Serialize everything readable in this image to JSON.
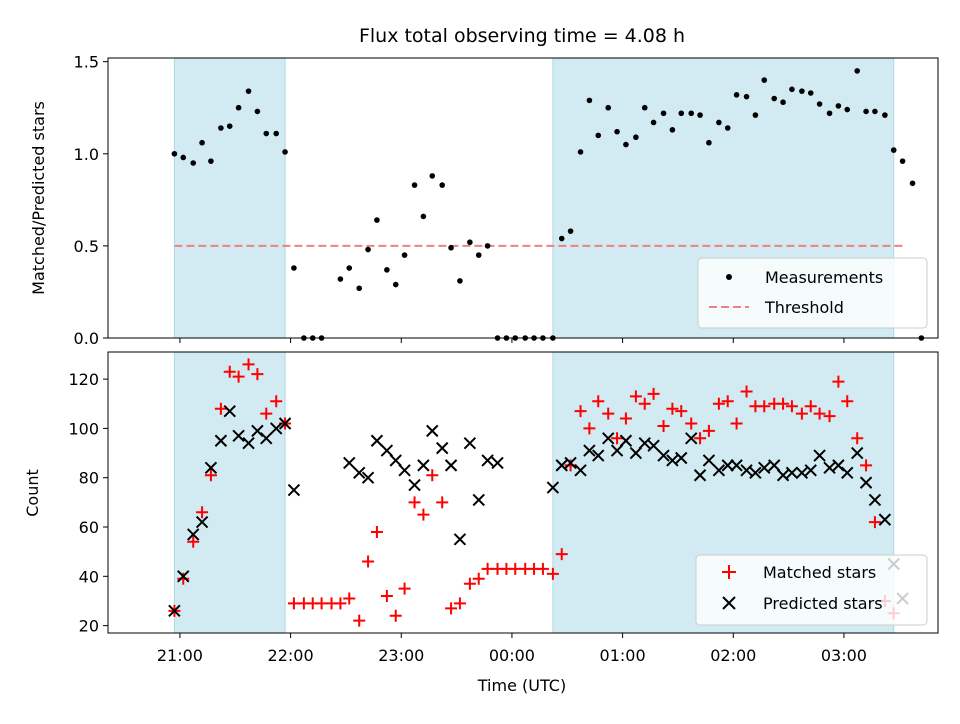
{
  "chart_data": {
    "title": "Flux total observing time = 4.08 h",
    "xlabel": "Time (UTC)",
    "x_unit": "hours since 00:00 UTC (negative = previous evening)",
    "xlim": [
      -3.65,
      3.85
    ],
    "x_ticks": [
      {
        "x": -3,
        "label": "21:00"
      },
      {
        "x": -2,
        "label": "22:00"
      },
      {
        "x": -1,
        "label": "23:00"
      },
      {
        "x": 0,
        "label": "00:00"
      },
      {
        "x": 1,
        "label": "01:00"
      },
      {
        "x": 2,
        "label": "02:00"
      },
      {
        "x": 3,
        "label": "03:00"
      }
    ],
    "shaded_intervals": [
      [
        -3.05,
        -2.05
      ],
      [
        0.37,
        3.45
      ]
    ],
    "shade_color": "#add8e6",
    "panels": [
      {
        "type": "scatter",
        "ylabel": "Matched/Predicted stars",
        "ylim": [
          0,
          1.52
        ],
        "y_ticks": [
          0,
          0.5,
          1.0,
          1.5
        ],
        "y_tick_labels": [
          "0.0",
          "0.5",
          "1.0",
          "1.5"
        ],
        "legend_position": "lower right",
        "threshold": {
          "name": "Threshold",
          "y": 0.5,
          "x_range": [
            -3.05,
            3.55
          ],
          "color": "#f08080"
        },
        "series": [
          {
            "name": "Measurements",
            "color": "#000000",
            "marker": "dot",
            "points": [
              [
                -3.05,
                1.0
              ],
              [
                -2.97,
                0.98
              ],
              [
                -2.88,
                0.95
              ],
              [
                -2.8,
                1.06
              ],
              [
                -2.72,
                0.96
              ],
              [
                -2.63,
                1.14
              ],
              [
                -2.55,
                1.15
              ],
              [
                -2.47,
                1.25
              ],
              [
                -2.38,
                1.34
              ],
              [
                -2.3,
                1.23
              ],
              [
                -2.22,
                1.11
              ],
              [
                -2.13,
                1.11
              ],
              [
                -2.05,
                1.01
              ],
              [
                -1.97,
                0.38
              ],
              [
                -1.88,
                0.0
              ],
              [
                -1.8,
                0.0
              ],
              [
                -1.72,
                0.0
              ],
              [
                -1.55,
                0.32
              ],
              [
                -1.47,
                0.38
              ],
              [
                -1.38,
                0.27
              ],
              [
                -1.3,
                0.48
              ],
              [
                -1.22,
                0.64
              ],
              [
                -1.13,
                0.37
              ],
              [
                -1.05,
                0.29
              ],
              [
                -0.97,
                0.45
              ],
              [
                -0.88,
                0.83
              ],
              [
                -0.8,
                0.66
              ],
              [
                -0.72,
                0.88
              ],
              [
                -0.63,
                0.83
              ],
              [
                -0.55,
                0.49
              ],
              [
                -0.47,
                0.31
              ],
              [
                -0.38,
                0.52
              ],
              [
                -0.3,
                0.45
              ],
              [
                -0.22,
                0.5
              ],
              [
                -0.13,
                0.0
              ],
              [
                -0.05,
                0.0
              ],
              [
                0.03,
                0.0
              ],
              [
                0.12,
                0.0
              ],
              [
                0.2,
                0.0
              ],
              [
                0.28,
                0.0
              ],
              [
                0.37,
                0.0
              ],
              [
                0.45,
                0.54
              ],
              [
                0.53,
                0.58
              ],
              [
                0.62,
                1.01
              ],
              [
                0.7,
                1.29
              ],
              [
                0.78,
                1.1
              ],
              [
                0.87,
                1.25
              ],
              [
                0.95,
                1.12
              ],
              [
                1.03,
                1.05
              ],
              [
                1.12,
                1.09
              ],
              [
                1.2,
                1.25
              ],
              [
                1.28,
                1.17
              ],
              [
                1.37,
                1.22
              ],
              [
                1.45,
                1.13
              ],
              [
                1.53,
                1.22
              ],
              [
                1.62,
                1.22
              ],
              [
                1.7,
                1.21
              ],
              [
                1.78,
                1.06
              ],
              [
                1.87,
                1.17
              ],
              [
                1.95,
                1.14
              ],
              [
                2.03,
                1.32
              ],
              [
                2.12,
                1.31
              ],
              [
                2.2,
                1.21
              ],
              [
                2.28,
                1.4
              ],
              [
                2.37,
                1.3
              ],
              [
                2.45,
                1.28
              ],
              [
                2.53,
                1.35
              ],
              [
                2.62,
                1.34
              ],
              [
                2.7,
                1.33
              ],
              [
                2.78,
                1.27
              ],
              [
                2.87,
                1.22
              ],
              [
                2.95,
                1.26
              ],
              [
                3.03,
                1.24
              ],
              [
                3.12,
                1.45
              ],
              [
                3.2,
                1.23
              ],
              [
                3.28,
                1.23
              ],
              [
                3.37,
                1.21
              ],
              [
                3.45,
                1.02
              ],
              [
                3.53,
                0.96
              ],
              [
                3.62,
                0.84
              ],
              [
                3.7,
                0.0
              ]
            ]
          }
        ]
      },
      {
        "type": "scatter",
        "ylabel": "Count",
        "ylim": [
          17,
          131
        ],
        "y_ticks": [
          20,
          40,
          60,
          80,
          100,
          120
        ],
        "y_tick_labels": [
          "20",
          "40",
          "60",
          "80",
          "100",
          "120"
        ],
        "legend_position": "lower right",
        "series": [
          {
            "name": "Matched stars",
            "color": "#ff0000",
            "marker": "plus",
            "points": [
              [
                -3.05,
                26
              ],
              [
                -2.97,
                39
              ],
              [
                -2.88,
                54
              ],
              [
                -2.8,
                66
              ],
              [
                -2.72,
                81
              ],
              [
                -2.63,
                108
              ],
              [
                -2.55,
                123
              ],
              [
                -2.47,
                121
              ],
              [
                -2.38,
                126
              ],
              [
                -2.3,
                122
              ],
              [
                -2.22,
                106
              ],
              [
                -2.13,
                111
              ],
              [
                -2.05,
                102
              ],
              [
                -1.97,
                29
              ],
              [
                -1.88,
                29
              ],
              [
                -1.8,
                29
              ],
              [
                -1.72,
                29
              ],
              [
                -1.63,
                29
              ],
              [
                -1.55,
                29
              ],
              [
                -1.47,
                31
              ],
              [
                -1.38,
                22
              ],
              [
                -1.3,
                46
              ],
              [
                -1.22,
                58
              ],
              [
                -1.13,
                32
              ],
              [
                -1.05,
                24
              ],
              [
                -0.97,
                35
              ],
              [
                -0.88,
                70
              ],
              [
                -0.8,
                65
              ],
              [
                -0.72,
                81
              ],
              [
                -0.63,
                70
              ],
              [
                -0.55,
                27
              ],
              [
                -0.47,
                29
              ],
              [
                -0.38,
                37
              ],
              [
                -0.3,
                39
              ],
              [
                -0.22,
                43
              ],
              [
                -0.13,
                43
              ],
              [
                -0.05,
                43
              ],
              [
                0.03,
                43
              ],
              [
                0.12,
                43
              ],
              [
                0.2,
                43
              ],
              [
                0.28,
                43
              ],
              [
                0.37,
                41
              ],
              [
                0.45,
                49
              ],
              [
                0.53,
                85
              ],
              [
                0.62,
                107
              ],
              [
                0.7,
                100
              ],
              [
                0.78,
                111
              ],
              [
                0.87,
                106
              ],
              [
                0.95,
                96
              ],
              [
                1.03,
                104
              ],
              [
                1.12,
                113
              ],
              [
                1.2,
                110
              ],
              [
                1.28,
                114
              ],
              [
                1.37,
                101
              ],
              [
                1.45,
                108
              ],
              [
                1.53,
                107
              ],
              [
                1.62,
                102
              ],
              [
                1.7,
                96
              ],
              [
                1.78,
                99
              ],
              [
                1.87,
                110
              ],
              [
                1.95,
                111
              ],
              [
                2.03,
                102
              ],
              [
                2.12,
                115
              ],
              [
                2.2,
                109
              ],
              [
                2.28,
                109
              ],
              [
                2.37,
                110
              ],
              [
                2.45,
                110
              ],
              [
                2.53,
                109
              ],
              [
                2.62,
                106
              ],
              [
                2.7,
                109
              ],
              [
                2.78,
                106
              ],
              [
                2.87,
                105
              ],
              [
                2.95,
                119
              ],
              [
                3.03,
                111
              ],
              [
                3.12,
                96
              ],
              [
                3.2,
                85
              ],
              [
                3.28,
                62
              ],
              [
                3.37,
                30
              ],
              [
                3.45,
                25
              ]
            ]
          },
          {
            "name": "Predicted stars",
            "color": "#000000",
            "marker": "x",
            "points": [
              [
                -3.05,
                26
              ],
              [
                -2.97,
                40
              ],
              [
                -2.88,
                57
              ],
              [
                -2.8,
                62
              ],
              [
                -2.72,
                84
              ],
              [
                -2.63,
                95
              ],
              [
                -2.55,
                107
              ],
              [
                -2.47,
                97
              ],
              [
                -2.38,
                94
              ],
              [
                -2.3,
                99
              ],
              [
                -2.22,
                96
              ],
              [
                -2.13,
                100
              ],
              [
                -2.05,
                102
              ],
              [
                -1.97,
                75
              ],
              [
                -1.47,
                86
              ],
              [
                -1.38,
                82
              ],
              [
                -1.3,
                80
              ],
              [
                -1.22,
                95
              ],
              [
                -1.13,
                91
              ],
              [
                -1.05,
                87
              ],
              [
                -0.97,
                83
              ],
              [
                -0.88,
                77
              ],
              [
                -0.8,
                85
              ],
              [
                -0.72,
                99
              ],
              [
                -0.63,
                92
              ],
              [
                -0.55,
                85
              ],
              [
                -0.47,
                55
              ],
              [
                -0.38,
                94
              ],
              [
                -0.3,
                71
              ],
              [
                -0.22,
                87
              ],
              [
                -0.13,
                86
              ],
              [
                0.37,
                76
              ],
              [
                0.45,
                85
              ],
              [
                0.53,
                86
              ],
              [
                0.62,
                83
              ],
              [
                0.7,
                91
              ],
              [
                0.78,
                89
              ],
              [
                0.87,
                96
              ],
              [
                0.95,
                91
              ],
              [
                1.03,
                95
              ],
              [
                1.12,
                90
              ],
              [
                1.2,
                94
              ],
              [
                1.28,
                93
              ],
              [
                1.37,
                89
              ],
              [
                1.45,
                87
              ],
              [
                1.53,
                88
              ],
              [
                1.62,
                96
              ],
              [
                1.7,
                81
              ],
              [
                1.78,
                87
              ],
              [
                1.87,
                83
              ],
              [
                1.95,
                85
              ],
              [
                2.03,
                85
              ],
              [
                2.12,
                83
              ],
              [
                2.2,
                82
              ],
              [
                2.28,
                84
              ],
              [
                2.37,
                85
              ],
              [
                2.45,
                81
              ],
              [
                2.53,
                82
              ],
              [
                2.62,
                82
              ],
              [
                2.7,
                83
              ],
              [
                2.78,
                89
              ],
              [
                2.87,
                84
              ],
              [
                2.95,
                85
              ],
              [
                3.03,
                82
              ],
              [
                3.12,
                90
              ],
              [
                3.2,
                78
              ],
              [
                3.28,
                71
              ],
              [
                3.37,
                63
              ],
              [
                3.45,
                45
              ],
              [
                3.53,
                31
              ]
            ]
          }
        ]
      }
    ]
  }
}
